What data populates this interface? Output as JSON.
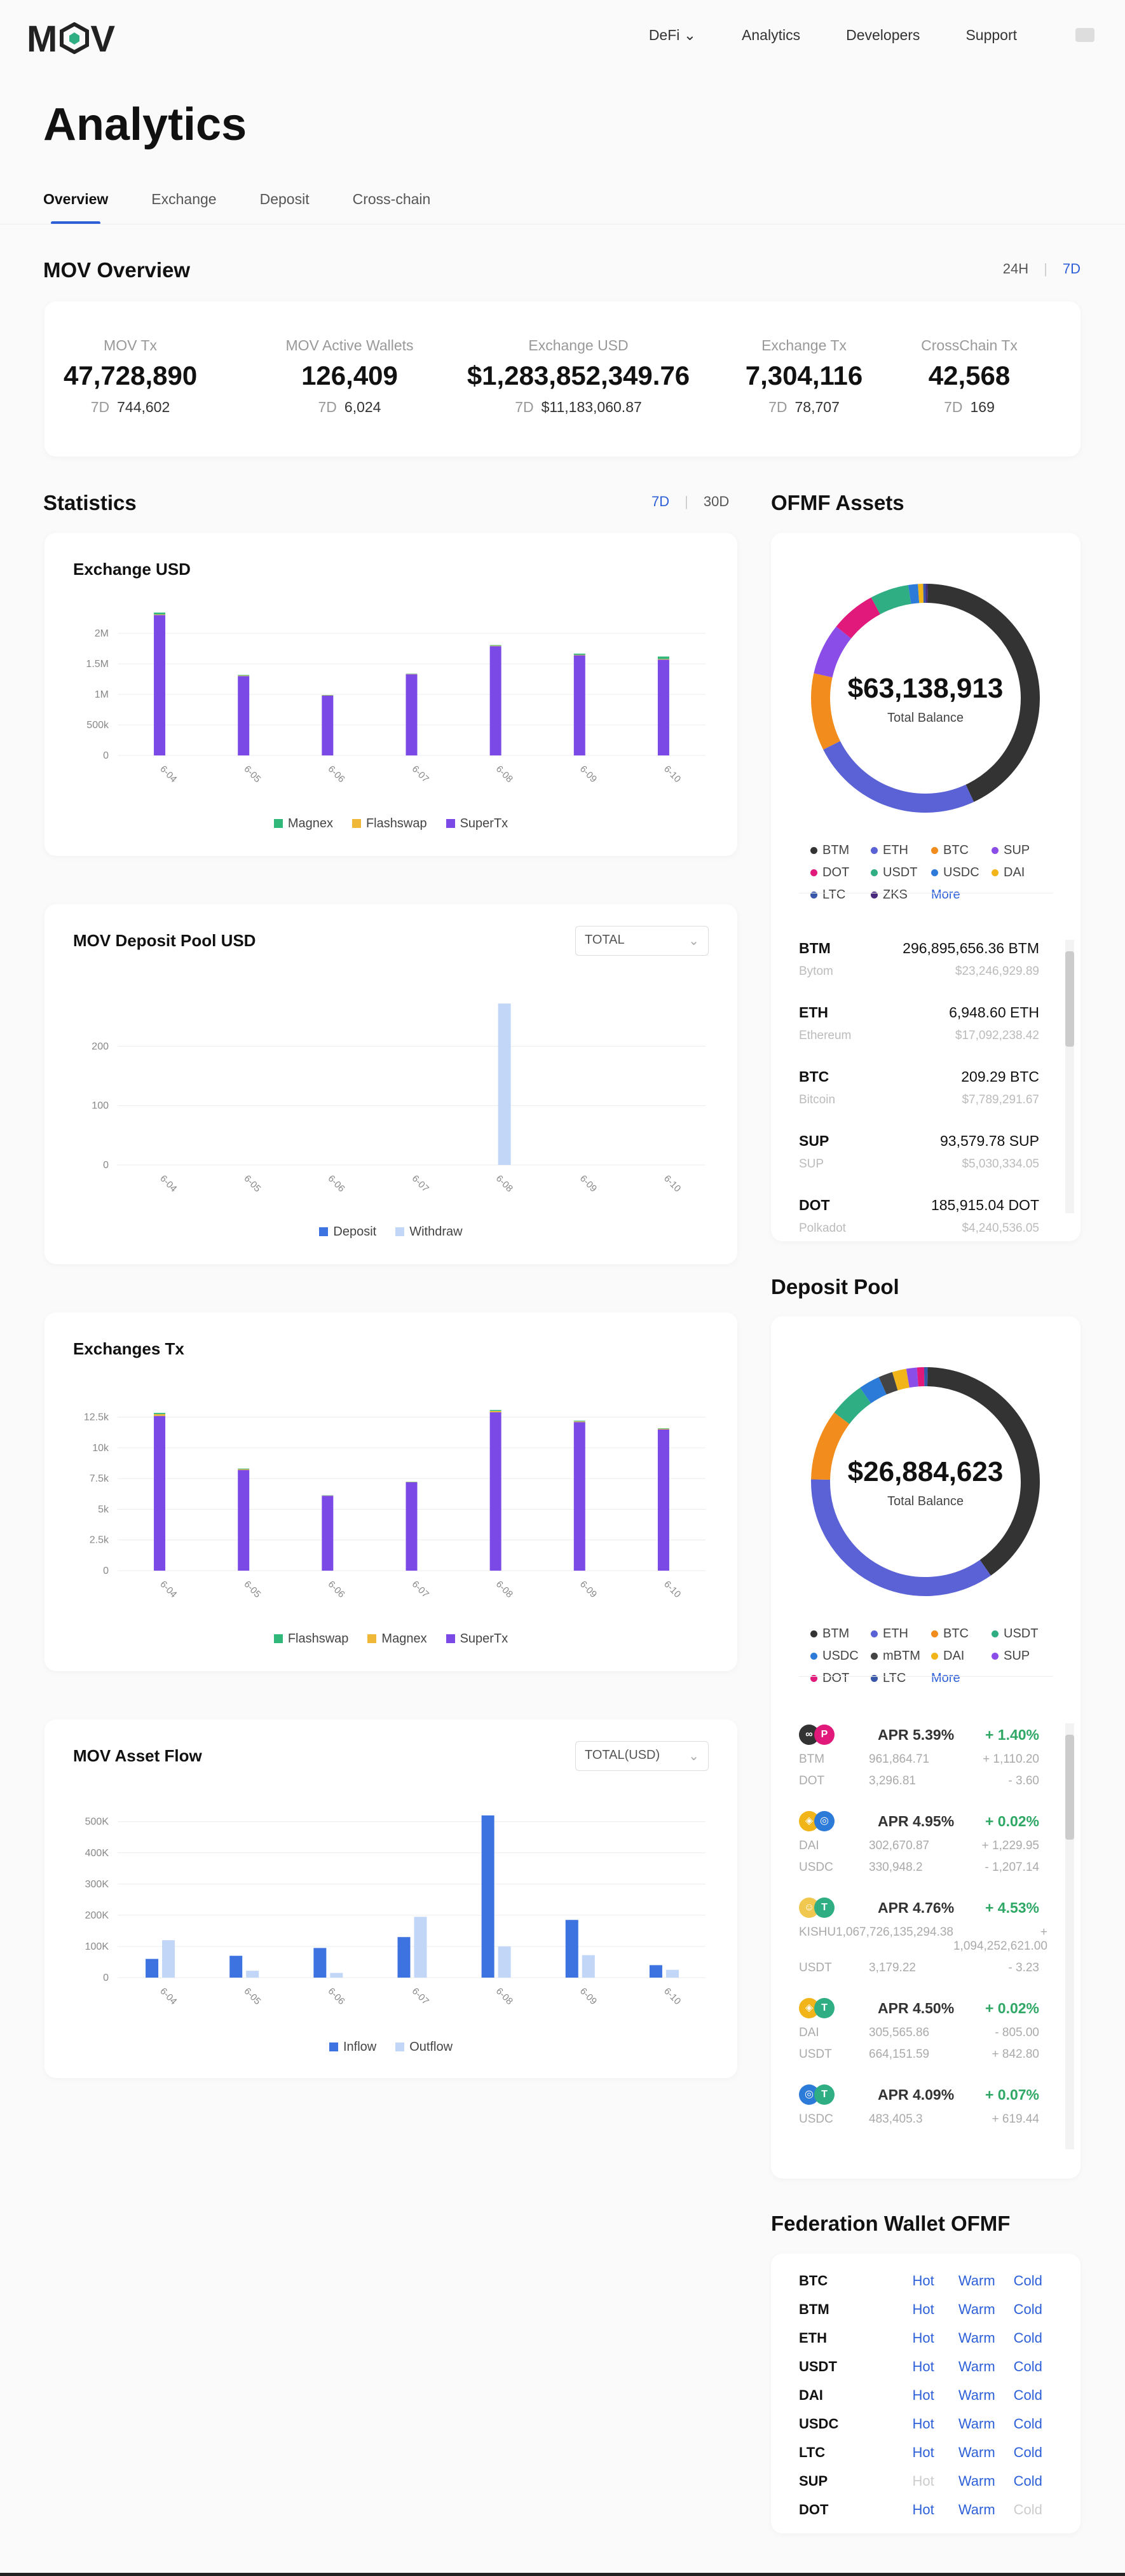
{
  "nav": {
    "logo": "MOV",
    "links": [
      "DeFi",
      "Analytics",
      "Developers",
      "Support"
    ]
  },
  "page": {
    "title": "Analytics",
    "tabs": [
      "Overview",
      "Exchange",
      "Deposit",
      "Cross-chain"
    ]
  },
  "overview": {
    "title": "MOV Overview",
    "periods": [
      "24H",
      "7D"
    ],
    "stats": [
      {
        "label": "MOV Tx",
        "value": "47,728,890",
        "sub_key": "7D",
        "sub_val": "744,602"
      },
      {
        "label": "MOV Active Wallets",
        "value": "126,409",
        "sub_key": "7D",
        "sub_val": "6,024"
      },
      {
        "label": "Exchange USD",
        "value": "$1,283,852,349.76",
        "sub_key": "7D",
        "sub_val": "$11,183,060.87"
      },
      {
        "label": "Exchange Tx",
        "value": "7,304,116",
        "sub_key": "7D",
        "sub_val": "78,707"
      },
      {
        "label": "CrossChain Tx",
        "value": "42,568",
        "sub_key": "7D",
        "sub_val": "169"
      }
    ]
  },
  "statistics": {
    "title": "Statistics",
    "periods": [
      "7D",
      "30D"
    ]
  },
  "chart_data": [
    {
      "type": "bar",
      "title": "Exchange USD",
      "categories": [
        "6-04",
        "6-05",
        "6-06",
        "6-07",
        "6-08",
        "6-09",
        "6-10"
      ],
      "yticks": [
        "0",
        "500k",
        "1M",
        "1.5M",
        "2M"
      ],
      "ylim": [
        0,
        2500000
      ],
      "stacked": true,
      "series": [
        {
          "name": "SuperTx",
          "color": "#7b4ae6",
          "values": [
            2300000,
            1300000,
            980000,
            1330000,
            1790000,
            1640000,
            1570000
          ]
        },
        {
          "name": "Flashswap",
          "color": "#f0b838",
          "values": [
            10000,
            8000,
            5000,
            5000,
            8000,
            8000,
            10000
          ]
        },
        {
          "name": "Magnex",
          "color": "#2fb87a",
          "values": [
            30000,
            10000,
            5000,
            5000,
            10000,
            20000,
            40000
          ]
        }
      ],
      "legend": [
        "Magnex",
        "Flashswap",
        "SuperTx"
      ],
      "legend_colors": [
        "#2fb87a",
        "#f0b838",
        "#7b4ae6"
      ]
    },
    {
      "type": "bar",
      "title": "MOV Deposit Pool USD",
      "select": "TOTAL",
      "categories": [
        "6-04",
        "6-05",
        "6-06",
        "6-07",
        "6-08",
        "6-09",
        "6-10"
      ],
      "yticks": [
        "0",
        "100",
        "200"
      ],
      "ylim": [
        0,
        300
      ],
      "stacked": false,
      "series": [
        {
          "name": "Deposit",
          "color": "#3d73e0",
          "values": [
            0,
            0,
            0,
            0,
            0,
            0,
            0
          ]
        },
        {
          "name": "Withdraw",
          "color": "#c2d6f7",
          "values": [
            0,
            0,
            0,
            0,
            272,
            0,
            0
          ]
        }
      ],
      "legend": [
        "Deposit",
        "Withdraw"
      ],
      "legend_colors": [
        "#3d73e0",
        "#c2d6f7"
      ]
    },
    {
      "type": "bar",
      "title": "Exchanges Tx",
      "categories": [
        "6-04",
        "6-05",
        "6-06",
        "6-07",
        "6-08",
        "6-09",
        "6-10"
      ],
      "yticks": [
        "0",
        "2.5k",
        "5k",
        "7.5k",
        "10k",
        "12.5k"
      ],
      "ylim": [
        0,
        14500
      ],
      "stacked": true,
      "series": [
        {
          "name": "SuperTx",
          "color": "#7b4ae6",
          "values": [
            12600,
            8200,
            6100,
            7200,
            12900,
            12100,
            11500
          ]
        },
        {
          "name": "Magnex",
          "color": "#f0b838",
          "values": [
            150,
            60,
            20,
            20,
            100,
            60,
            50
          ]
        },
        {
          "name": "Flashswap",
          "color": "#2fb87a",
          "values": [
            100,
            50,
            20,
            20,
            80,
            50,
            40
          ]
        }
      ],
      "legend": [
        "Flashswap",
        "Magnex",
        "SuperTx"
      ],
      "legend_colors": [
        "#2fb87a",
        "#f0b838",
        "#7b4ae6"
      ]
    },
    {
      "type": "bar",
      "title": "MOV Asset Flow",
      "select": "TOTAL(USD)",
      "categories": [
        "6-04",
        "6-05",
        "6-06",
        "6-07",
        "6-08",
        "6-09",
        "6-10"
      ],
      "yticks": [
        "0",
        "100K",
        "200K",
        "300K",
        "400K",
        "500K"
      ],
      "ylim": [
        0,
        530000
      ],
      "stacked": false,
      "series": [
        {
          "name": "Inflow",
          "color": "#3d73e0",
          "values": [
            60000,
            70000,
            95000,
            130000,
            520000,
            185000,
            40000
          ]
        },
        {
          "name": "Outflow",
          "color": "#c2d6f7",
          "values": [
            120000,
            22000,
            15000,
            195000,
            100000,
            72000,
            25000
          ]
        }
      ],
      "legend": [
        "Inflow",
        "Outflow"
      ],
      "legend_colors": [
        "#3d73e0",
        "#c2d6f7"
      ]
    },
    {
      "type": "pie",
      "title": "OFMF Assets",
      "center_value": "$63,138,913",
      "center_label": "Total Balance",
      "slices": [
        {
          "name": "BTM",
          "value": 47,
          "color": "#333333"
        },
        {
          "name": "ETH",
          "value": 27,
          "color": "#5b62d6"
        },
        {
          "name": "BTC",
          "value": 12,
          "color": "#f28c1c"
        },
        {
          "name": "SUP",
          "value": 8,
          "color": "#8a4de8"
        },
        {
          "name": "DOT",
          "value": 7,
          "color": "#e0197a"
        },
        {
          "name": "USDT",
          "value": 6,
          "color": "#2fae84"
        },
        {
          "name": "USDC",
          "value": 1.5,
          "color": "#2d7bd8"
        },
        {
          "name": "DAI",
          "value": 0.8,
          "color": "#f2b519"
        },
        {
          "name": "LTC",
          "value": 0.4,
          "color": "#3857a8"
        },
        {
          "name": "ZKS",
          "value": 0.3,
          "color": "#4a2a7a"
        }
      ]
    },
    {
      "type": "pie",
      "title": "Deposit Pool",
      "center_value": "$26,884,623",
      "center_label": "Total Balance",
      "slices": [
        {
          "name": "BTM",
          "value": 40,
          "color": "#333333"
        },
        {
          "name": "ETH",
          "value": 35,
          "color": "#5b62d6"
        },
        {
          "name": "BTC",
          "value": 10,
          "color": "#f28c1c"
        },
        {
          "name": "USDT",
          "value": 5,
          "color": "#2fae84"
        },
        {
          "name": "USDC",
          "value": 3,
          "color": "#2d7bd8"
        },
        {
          "name": "mBTM",
          "value": 2,
          "color": "#444444"
        },
        {
          "name": "DAI",
          "value": 2,
          "color": "#f2b519"
        },
        {
          "name": "SUP",
          "value": 1.5,
          "color": "#8a4de8"
        },
        {
          "name": "DOT",
          "value": 1,
          "color": "#e0197a"
        },
        {
          "name": "LTC",
          "value": 0.5,
          "color": "#3857a8"
        }
      ]
    }
  ],
  "ofmf": {
    "title": "OFMF Assets",
    "more": "More",
    "assets": [
      {
        "sym": "BTM",
        "amount": "296,895,656.36 BTM",
        "name": "Bytom",
        "usd": "$23,246,929.89"
      },
      {
        "sym": "ETH",
        "amount": "6,948.60 ETH",
        "name": "Ethereum",
        "usd": "$17,092,238.42"
      },
      {
        "sym": "BTC",
        "amount": "209.29 BTC",
        "name": "Bitcoin",
        "usd": "$7,789,291.67"
      },
      {
        "sym": "SUP",
        "amount": "93,579.78 SUP",
        "name": "SUP",
        "usd": "$5,030,334.05"
      },
      {
        "sym": "DOT",
        "amount": "185,915.04 DOT",
        "name": "Polkadot",
        "usd": "$4,240,536.05"
      }
    ]
  },
  "deposit_pool": {
    "title": "Deposit Pool",
    "more": "More",
    "pools": [
      {
        "c1": "#333333",
        "c2": "#e0197a",
        "t1": "∞",
        "t2": "P",
        "apr": "APR 5.39%",
        "chg": "+ 1.40%",
        "lines": [
          [
            "BTM",
            "961,864.71",
            "+ 1,110.20"
          ],
          [
            "DOT",
            "3,296.81",
            "- 3.60"
          ]
        ]
      },
      {
        "c1": "#f2b519",
        "c2": "#2d7bd8",
        "t1": "◈",
        "t2": "◎",
        "apr": "APR 4.95%",
        "chg": "+ 0.02%",
        "lines": [
          [
            "DAI",
            "302,670.87",
            "+ 1,229.95"
          ],
          [
            "USDC",
            "330,948.2",
            "- 1,207.14"
          ]
        ]
      },
      {
        "c1": "#f0c850",
        "c2": "#2fae84",
        "t1": "☺",
        "t2": "T",
        "apr": "APR 4.76%",
        "chg": "+ 4.53%",
        "lines": [
          [
            "KISHU",
            "1,067,726,135,294.38",
            "+ 1,094,252,621.00"
          ],
          [
            "USDT",
            "3,179.22",
            "- 3.23"
          ]
        ]
      },
      {
        "c1": "#f2b519",
        "c2": "#2fae84",
        "t1": "◈",
        "t2": "T",
        "apr": "APR 4.50%",
        "chg": "+ 0.02%",
        "lines": [
          [
            "DAI",
            "305,565.86",
            "- 805.00"
          ],
          [
            "USDT",
            "664,151.59",
            "+ 842.80"
          ]
        ]
      },
      {
        "c1": "#2d7bd8",
        "c2": "#2fae84",
        "t1": "◎",
        "t2": "T",
        "apr": "APR 4.09%",
        "chg": "+ 0.07%",
        "lines": [
          [
            "USDC",
            "483,405.3",
            "+ 619.44"
          ]
        ]
      }
    ]
  },
  "federation": {
    "title": "Federation Wallet OFMF",
    "headers": [
      "Hot",
      "Warm",
      "Cold"
    ],
    "rows": [
      {
        "sym": "BTC",
        "hot": true,
        "warm": true,
        "cold": true
      },
      {
        "sym": "BTM",
        "hot": true,
        "warm": true,
        "cold": true
      },
      {
        "sym": "ETH",
        "hot": true,
        "warm": true,
        "cold": true
      },
      {
        "sym": "USDT",
        "hot": true,
        "warm": true,
        "cold": true
      },
      {
        "sym": "DAI",
        "hot": true,
        "warm": true,
        "cold": true
      },
      {
        "sym": "USDC",
        "hot": true,
        "warm": true,
        "cold": true
      },
      {
        "sym": "LTC",
        "hot": true,
        "warm": true,
        "cold": true
      },
      {
        "sym": "SUP",
        "hot": false,
        "warm": true,
        "cold": true
      },
      {
        "sym": "DOT",
        "hot": true,
        "warm": true,
        "cold": false
      }
    ]
  }
}
